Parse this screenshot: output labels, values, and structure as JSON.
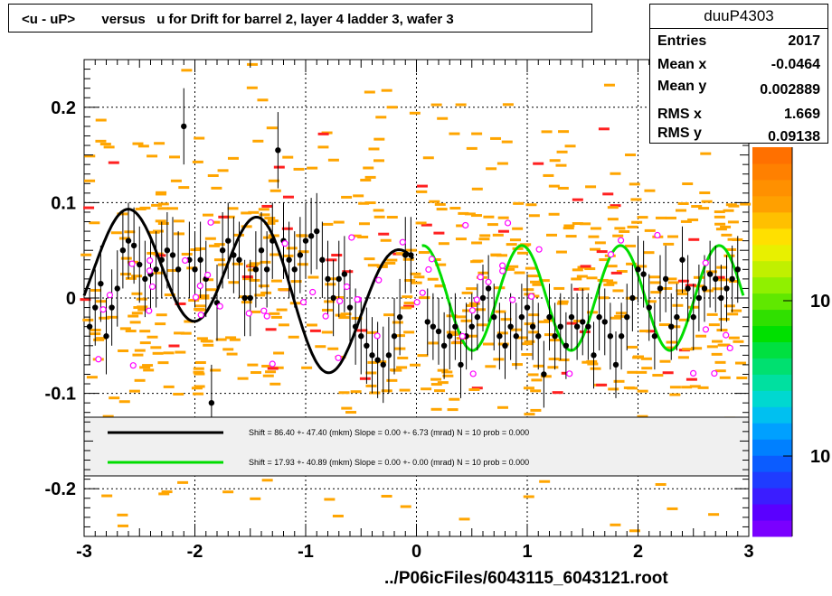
{
  "title": "<u - uP>       versus   u for Drift for barrel 2, layer 4 ladder 3, wafer 3",
  "footer": "../P06icFiles/6043115_6043121.root",
  "stats": {
    "name": "duuP4303",
    "rows": [
      {
        "label": "Entries",
        "value": "2017"
      },
      {
        "label": "Mean x",
        "value": "-0.0464"
      },
      {
        "label": "Mean y",
        "value": "0.002889"
      },
      {
        "label": "RMS x",
        "value": "1.669"
      },
      {
        "label": "RMS y",
        "value": "0.09138"
      }
    ]
  },
  "legend": {
    "entries": [
      {
        "text": "Shift =    86.40 +- 47.40 (mkm) Slope =    0.00 +- 6.73 (mrad)  N = 10 prob = 0.000",
        "color": "#000000"
      },
      {
        "text": "Shift =    17.93 +- 40.89 (mkm) Slope =    0.00 +- 0.00 (mrad)  N = 10 prob = 0.000",
        "color": "#00dd00"
      }
    ]
  },
  "colorbar": {
    "labels": [
      "10",
      "10"
    ],
    "colors": [
      "#7a00ff",
      "#5a00ff",
      "#3b1dff",
      "#1f3cff",
      "#0b5cff",
      "#0080ff",
      "#00a0ff",
      "#00c0f0",
      "#00d8d0",
      "#00e0a0",
      "#00e070",
      "#00e040",
      "#00e000",
      "#30e000",
      "#60e800",
      "#90f000",
      "#c0f000",
      "#e8f000",
      "#ffe000",
      "#ffc000",
      "#ffa000",
      "#ff9000",
      "#ff8000",
      "#ff7000"
    ]
  },
  "colors": {
    "scatter_fill": "#ffa500",
    "scatter_red": "#ff2020",
    "black_points": "#000000",
    "open_points": "#ff00ff",
    "fit_black": "#000000",
    "fit_green": "#00dd00",
    "legend_bg": "#f0f0f0"
  },
  "chart_data": {
    "type": "scatter",
    "title": "<u - uP>       versus   u for Drift for barrel 2, layer 4 ladder 3, wafer 3",
    "xlabel": "",
    "ylabel": "",
    "xlim": [
      -3,
      3
    ],
    "ylim": [
      -0.25,
      0.25
    ],
    "x_ticks": [
      -3,
      -2,
      -1,
      0,
      1,
      2,
      3
    ],
    "x_tick_labels": [
      "-3",
      "-2",
      "-1",
      "0",
      "1",
      "2",
      "3"
    ],
    "y_ticks": [
      -0.2,
      -0.1,
      0,
      0.1,
      0.2
    ],
    "y_tick_labels": [
      "-0.2",
      "-0.1",
      "0",
      "0.1",
      "0.2"
    ],
    "grid": true,
    "black_profile": {
      "x": [
        -2.95,
        -2.9,
        -2.85,
        -2.8,
        -2.75,
        -2.7,
        -2.65,
        -2.6,
        -2.55,
        -2.5,
        -2.45,
        -2.4,
        -2.35,
        -2.3,
        -2.25,
        -2.2,
        -2.15,
        -2.1,
        -2.05,
        -2.0,
        -1.95,
        -1.9,
        -1.85,
        -1.8,
        -1.75,
        -1.7,
        -1.65,
        -1.6,
        -1.55,
        -1.5,
        -1.45,
        -1.4,
        -1.35,
        -1.3,
        -1.25,
        -1.2,
        -1.15,
        -1.1,
        -1.05,
        -1.0,
        -0.95,
        -0.9,
        -0.85,
        -0.8,
        -0.75,
        -0.7,
        -0.65,
        -0.6,
        -0.55,
        -0.5,
        -0.45,
        -0.4,
        -0.35,
        -0.3,
        -0.25,
        -0.2,
        -0.15,
        -0.1,
        -0.05
      ],
      "y": [
        -0.03,
        -0.01,
        0.015,
        -0.04,
        -0.01,
        0.01,
        0.05,
        0.06,
        0.055,
        0.035,
        0.02,
        0.025,
        0.03,
        0.04,
        0.05,
        0.045,
        0.03,
        0.18,
        0.04,
        0.03,
        0.04,
        0.02,
        -0.11,
        -0.005,
        0.05,
        0.06,
        0.045,
        0.04,
        0.0,
        0.0,
        0.03,
        0.05,
        0.03,
        0.06,
        0.155,
        0.06,
        0.04,
        0.03,
        0.045,
        0.06,
        0.065,
        0.07,
        0.04,
        0.02,
        0.0,
        0.02,
        0.025,
        -0.01,
        -0.03,
        -0.04,
        -0.05,
        -0.06,
        -0.065,
        -0.07,
        -0.06,
        -0.04,
        -0.02,
        0.045,
        0.045
      ]
    },
    "green_profile": {
      "x": [
        0.1,
        0.15,
        0.2,
        0.25,
        0.3,
        0.35,
        0.4,
        0.45,
        0.5,
        0.55,
        0.6,
        0.65,
        0.7,
        0.75,
        0.8,
        0.85,
        0.9,
        0.95,
        1.0,
        1.05,
        1.1,
        1.15,
        1.2,
        1.25,
        1.3,
        1.35,
        1.4,
        1.45,
        1.5,
        1.55,
        1.6,
        1.65,
        1.7,
        1.75,
        1.8,
        1.85,
        1.9,
        1.95,
        2.0,
        2.05,
        2.1,
        2.15,
        2.2,
        2.25,
        2.3,
        2.35,
        2.4,
        2.45,
        2.5,
        2.55,
        2.6,
        2.65,
        2.7,
        2.75,
        2.8,
        2.85,
        2.9
      ],
      "y": [
        -0.025,
        -0.03,
        -0.035,
        -0.05,
        -0.04,
        -0.03,
        -0.07,
        -0.04,
        -0.03,
        -0.02,
        0.0,
        0.01,
        -0.02,
        -0.04,
        -0.05,
        -0.03,
        -0.04,
        -0.02,
        -0.01,
        -0.03,
        -0.04,
        -0.08,
        -0.02,
        -0.04,
        -0.03,
        -0.05,
        -0.02,
        -0.03,
        -0.025,
        -0.03,
        -0.06,
        -0.02,
        -0.025,
        -0.04,
        -0.07,
        -0.04,
        -0.02,
        0.0,
        0.03,
        0.025,
        -0.01,
        -0.04,
        0.01,
        0.02,
        -0.03,
        -0.02,
        0.04,
        0.01,
        -0.02,
        0.0,
        0.01,
        0.025,
        0.02,
        0.0,
        0.01,
        0.02,
        0.03
      ]
    },
    "series": [
      {
        "name": "Shift =    86.40 +- 47.40 (mkm) Slope =    0.00 +- 6.73 (mrad)  N = 10 prob = 0.000",
        "x_range": [
          -3.0,
          -0.03
        ]
      },
      {
        "name": "Shift =    17.93 +- 40.89 (mkm) Slope =    0.00 +- 0.00 (mrad)  N = 10 prob = 0.000",
        "x_range": [
          0.05,
          3.0
        ]
      }
    ]
  }
}
